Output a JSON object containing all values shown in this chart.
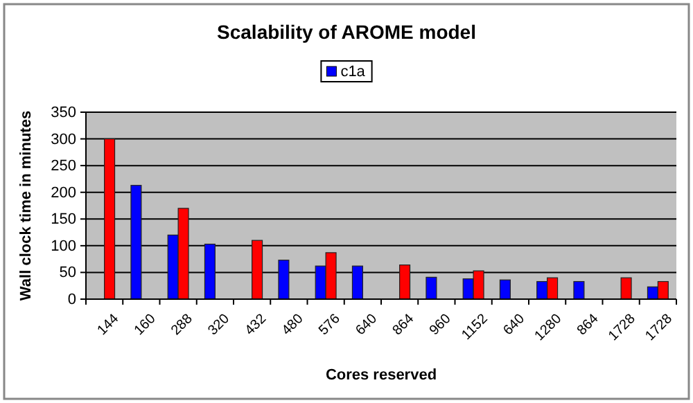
{
  "chart_data": {
    "type": "bar",
    "title": "Scalability of AROME model",
    "xlabel": "Cores reserved",
    "ylabel": "Wall clock time in minutes",
    "categories": [
      "144",
      "160",
      "288",
      "320",
      "432",
      "480",
      "576",
      "640",
      "864",
      "960",
      "1152",
      "640",
      "1280",
      "864",
      "1728",
      "1728"
    ],
    "series": [
      {
        "name": "c1a",
        "color": "#0000ff",
        "values": [
          null,
          213,
          120,
          103,
          null,
          73,
          62,
          62,
          null,
          41,
          38,
          36,
          33,
          33,
          null,
          23
        ]
      },
      {
        "color": "#ff0000",
        "values": [
          300,
          null,
          170,
          null,
          110,
          null,
          87,
          null,
          64,
          null,
          53,
          null,
          40,
          null,
          40,
          33
        ]
      }
    ],
    "ylim": [
      0,
      350
    ],
    "yticks": [
      0,
      50,
      100,
      150,
      200,
      250,
      300,
      350
    ],
    "grid": "y",
    "legend": "top"
  }
}
